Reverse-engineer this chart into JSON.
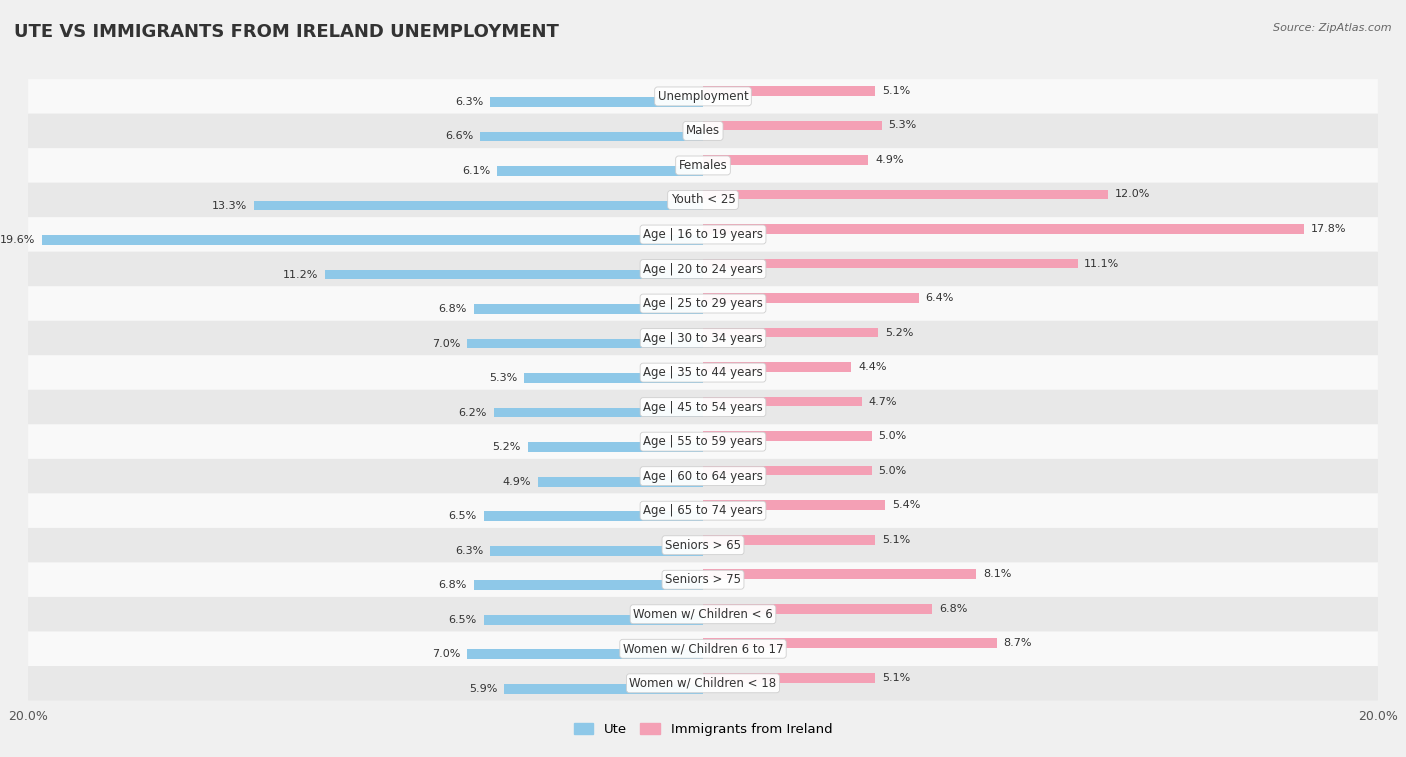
{
  "title": "Ute vs Immigrants from Ireland Unemployment",
  "source": "Source: ZipAtlas.com",
  "categories": [
    "Unemployment",
    "Males",
    "Females",
    "Youth < 25",
    "Age | 16 to 19 years",
    "Age | 20 to 24 years",
    "Age | 25 to 29 years",
    "Age | 30 to 34 years",
    "Age | 35 to 44 years",
    "Age | 45 to 54 years",
    "Age | 55 to 59 years",
    "Age | 60 to 64 years",
    "Age | 65 to 74 years",
    "Seniors > 65",
    "Seniors > 75",
    "Women w/ Children < 6",
    "Women w/ Children 6 to 17",
    "Women w/ Children < 18"
  ],
  "ute_values": [
    6.3,
    6.6,
    6.1,
    13.3,
    19.6,
    11.2,
    6.8,
    7.0,
    5.3,
    6.2,
    5.2,
    4.9,
    6.5,
    6.3,
    6.8,
    6.5,
    7.0,
    5.9
  ],
  "ireland_values": [
    5.1,
    5.3,
    4.9,
    12.0,
    17.8,
    11.1,
    6.4,
    5.2,
    4.4,
    4.7,
    5.0,
    5.0,
    5.4,
    5.1,
    8.1,
    6.8,
    8.7,
    5.1
  ],
  "ute_color": "#8ec8e8",
  "ireland_color": "#f4a0b5",
  "ute_label": "Ute",
  "ireland_label": "Immigrants from Ireland",
  "axis_max": 20.0,
  "bg_color": "#f0f0f0",
  "row_color_even": "#f9f9f9",
  "row_color_odd": "#e8e8e8",
  "title_fontsize": 13,
  "label_fontsize": 8.5,
  "value_fontsize": 8
}
